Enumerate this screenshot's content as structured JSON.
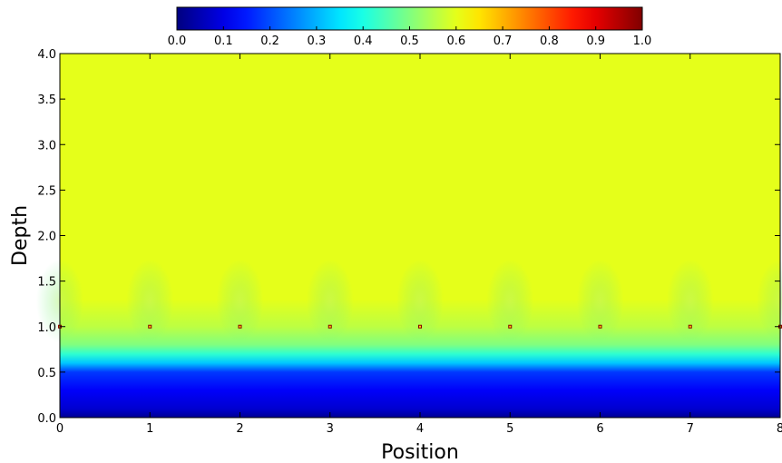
{
  "chart_data": {
    "type": "heatmap",
    "title": "",
    "xlabel": "Position",
    "ylabel": "Depth",
    "xlim": [
      0,
      8
    ],
    "ylim": [
      0,
      4
    ],
    "x_ticks": [
      "0",
      "1",
      "2",
      "3",
      "4",
      "5",
      "6",
      "7",
      "8"
    ],
    "y_ticks": [
      "0.0",
      "0.5",
      "1.0",
      "1.5",
      "2.0",
      "2.5",
      "3.0",
      "3.5",
      "4.0"
    ],
    "colorbar": {
      "range": [
        0,
        1
      ],
      "ticks": [
        "0.0",
        "0.1",
        "0.2",
        "0.3",
        "0.4",
        "0.5",
        "0.6",
        "0.7",
        "0.8",
        "0.9",
        "1.0"
      ],
      "placement": "top",
      "colormap": "jet"
    },
    "background_value": 0.6,
    "depth_profile": [
      {
        "depth": 0.0,
        "value": 0.02
      },
      {
        "depth": 0.1,
        "value": 0.08
      },
      {
        "depth": 0.3,
        "value": 0.12
      },
      {
        "depth": 0.5,
        "value": 0.18
      },
      {
        "depth": 0.6,
        "value": 0.32
      },
      {
        "depth": 0.7,
        "value": 0.42
      },
      {
        "depth": 0.8,
        "value": 0.5
      },
      {
        "depth": 1.0,
        "value": 0.56
      },
      {
        "depth": 1.3,
        "value": 0.6
      },
      {
        "depth": 4.0,
        "value": 0.6
      }
    ],
    "sources": [
      {
        "x": 0,
        "y": 1.0,
        "value": 1.0
      },
      {
        "x": 1,
        "y": 1.0,
        "value": 1.0
      },
      {
        "x": 2,
        "y": 1.0,
        "value": 1.0
      },
      {
        "x": 3,
        "y": 1.0,
        "value": 1.0
      },
      {
        "x": 4,
        "y": 1.0,
        "value": 1.0
      },
      {
        "x": 5,
        "y": 1.0,
        "value": 1.0
      },
      {
        "x": 6,
        "y": 1.0,
        "value": 1.0
      },
      {
        "x": 7,
        "y": 1.0,
        "value": 1.0
      },
      {
        "x": 8,
        "y": 1.0,
        "value": 1.0
      }
    ]
  }
}
